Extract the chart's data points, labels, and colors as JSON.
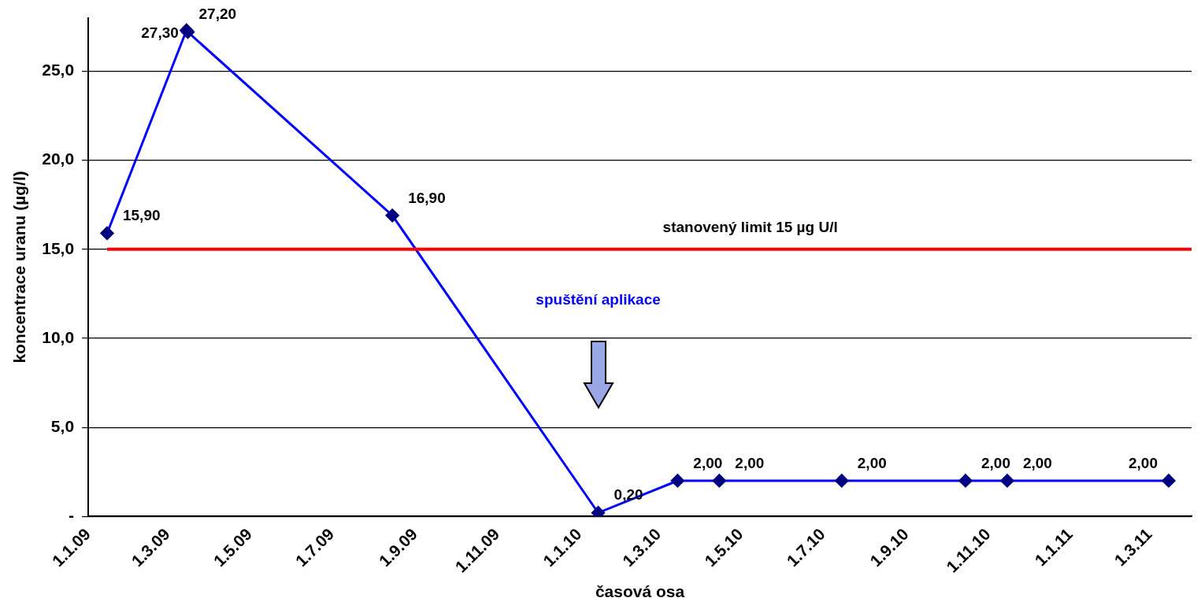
{
  "chart_data": {
    "type": "line",
    "xlabel": "časová osa",
    "ylabel": "koncentrace uranu (µg/l)",
    "x": [
      "2009-01-15",
      "2009-03-15",
      "2009-03-16",
      "2009-08-15",
      "2010-01-15",
      "2010-03-15",
      "2010-04-15",
      "2010-07-15",
      "2010-10-15",
      "2010-11-15",
      "2011-03-15"
    ],
    "series": [
      {
        "color": "#0000ff",
        "values": [
          15.9,
          27.3,
          27.2,
          16.9,
          0.2,
          2,
          2,
          2,
          2,
          2,
          2
        ],
        "value_labels": [
          "15,90",
          "27,30",
          "27,20",
          "16,90",
          "0,20",
          "2,00",
          "2,00",
          "2,00",
          "2,00",
          "2,00",
          "2,00"
        ]
      }
    ],
    "xlim": [
      "2009-01-01",
      "2011-04-01"
    ],
    "xticks": [
      {
        "value": "2009-01-01",
        "label": "1.1.09"
      },
      {
        "value": "2009-03-01",
        "label": "1.3.09"
      },
      {
        "value": "2009-05-01",
        "label": "1.5.09"
      },
      {
        "value": "2009-07-01",
        "label": "1.7.09"
      },
      {
        "value": "2009-09-01",
        "label": "1.9.09"
      },
      {
        "value": "2009-11-01",
        "label": "1.11.09"
      },
      {
        "value": "2010-01-01",
        "label": "1.1.10"
      },
      {
        "value": "2010-03-01",
        "label": "1.3.10"
      },
      {
        "value": "2010-05-01",
        "label": "1.5.10"
      },
      {
        "value": "2010-07-01",
        "label": "1.7.10"
      },
      {
        "value": "2010-09-01",
        "label": "1.9.10"
      },
      {
        "value": "2010-11-01",
        "label": "1.11.10"
      },
      {
        "value": "2011-01-01",
        "label": "1.1.11"
      },
      {
        "value": "2011-03-01",
        "label": "1.3.11"
      }
    ],
    "ylim": [
      0,
      28
    ],
    "yticks": [
      {
        "value": 0,
        "label": "-"
      },
      {
        "value": 5,
        "label": "5,0"
      },
      {
        "value": 10,
        "label": "10,0"
      },
      {
        "value": 15,
        "label": "15,0"
      },
      {
        "value": 20,
        "label": "20,0"
      },
      {
        "value": 25,
        "label": "25,0"
      }
    ],
    "ref_lines": [
      {
        "axis": "y",
        "value": 15,
        "label": "stanovený limit 15 µg U/l",
        "color": "#ff0000"
      }
    ],
    "annotations": [
      "spuštění aplikace"
    ],
    "grid": "y",
    "legend": false,
    "marker": "diamond",
    "line_style": "solid"
  }
}
